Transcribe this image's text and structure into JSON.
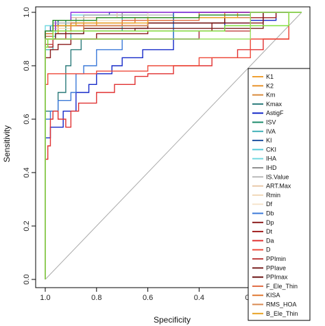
{
  "chart_data": {
    "type": "line",
    "xlabel": "Specificity",
    "ylabel": "Sensitivity",
    "x_reversed": true,
    "xlim": [
      1.0,
      0.0
    ],
    "ylim": [
      0.0,
      1.0
    ],
    "x_ticks": [
      1.0,
      0.8,
      0.6,
      0.4,
      0.2,
      0.0
    ],
    "x_tick_labels": [
      "1.0",
      "0.8",
      "0.6",
      "0.4",
      "0.2",
      "0.0"
    ],
    "y_ticks": [
      0.0,
      0.2,
      0.4,
      0.6,
      0.8,
      1.0
    ],
    "y_tick_labels": [
      "0.0",
      "0.2",
      "0.4",
      "0.6",
      "0.8",
      "1.0"
    ],
    "diagonal": {
      "x": [
        1.0,
        0.0
      ],
      "y": [
        0.0,
        1.0
      ],
      "color": "#aaaaaa"
    },
    "legend_position": "bottom-right",
    "series": [
      {
        "name": "K1",
        "color": "#f0a030",
        "x": [
          1.0,
          1.0,
          0.97,
          0.9,
          0.8,
          0.5,
          0.2,
          0.0
        ],
        "y": [
          0.0,
          0.9,
          0.93,
          0.93,
          0.97,
          0.97,
          1.0,
          1.0
        ]
      },
      {
        "name": "K2",
        "color": "#e8932a",
        "x": [
          1.0,
          1.0,
          0.95,
          0.8,
          0.5,
          0.0
        ],
        "y": [
          0.0,
          0.88,
          0.92,
          0.95,
          0.97,
          1.0
        ]
      },
      {
        "name": "Km",
        "color": "#d88a3a",
        "x": [
          1.0,
          1.0,
          0.96,
          0.85,
          0.6,
          0.0
        ],
        "y": [
          0.0,
          0.9,
          0.93,
          0.95,
          0.98,
          1.0
        ]
      },
      {
        "name": "Kmax",
        "color": "#2a7a7a",
        "x": [
          1.0,
          1.0,
          0.95,
          0.92,
          0.9,
          0.86,
          0.5,
          0.0
        ],
        "y": [
          0.0,
          0.57,
          0.63,
          0.7,
          0.8,
          0.86,
          0.9,
          1.0
        ]
      },
      {
        "name": "AstigF",
        "color": "#1428c8",
        "x": [
          1.0,
          1.0,
          0.98,
          0.93,
          0.88,
          0.83,
          0.8,
          0.74,
          0.7,
          0.62,
          0.5,
          0.4,
          0.3,
          0.2,
          0.1,
          0.0
        ],
        "y": [
          0.0,
          0.5,
          0.53,
          0.57,
          0.63,
          0.7,
          0.73,
          0.77,
          0.8,
          0.83,
          0.86,
          0.9,
          0.93,
          0.96,
          0.97,
          1.0
        ]
      },
      {
        "name": "ISV",
        "color": "#1a8a6a",
        "x": [
          1.0,
          1.0,
          0.97,
          0.92,
          0.85,
          0.5,
          0.0
        ],
        "y": [
          0.0,
          0.86,
          0.9,
          0.93,
          0.97,
          0.98,
          1.0
        ]
      },
      {
        "name": "IVA",
        "color": "#40b0b8",
        "x": [
          1.0,
          1.0,
          0.97,
          0.9,
          0.7,
          0.0
        ],
        "y": [
          0.0,
          0.83,
          0.86,
          0.9,
          0.93,
          1.0
        ]
      },
      {
        "name": "KI",
        "color": "#2050a0",
        "x": [
          1.0,
          1.0,
          0.98,
          0.95,
          0.9,
          0.85,
          0.75,
          0.6,
          0.4,
          0.2,
          0.0
        ],
        "y": [
          0.0,
          0.9,
          0.93,
          0.95,
          0.97,
          0.98,
          0.99,
          1.0,
          1.0,
          1.0,
          1.0
        ]
      },
      {
        "name": "CKI",
        "color": "#50c8d8",
        "x": [
          1.0,
          1.0,
          0.96,
          0.88,
          0.6,
          0.0
        ],
        "y": [
          0.0,
          0.88,
          0.91,
          0.95,
          0.97,
          1.0
        ]
      },
      {
        "name": "IHA",
        "color": "#70d8e0",
        "x": [
          1.0,
          1.0,
          0.97,
          0.9,
          0.6,
          0.0
        ],
        "y": [
          0.0,
          0.93,
          0.95,
          0.97,
          0.99,
          1.0
        ]
      },
      {
        "name": "IHD",
        "color": "#909090",
        "x": [
          1.0,
          1.0,
          0.96,
          0.88,
          0.7,
          0.4,
          0.0
        ],
        "y": [
          0.0,
          0.9,
          0.93,
          0.96,
          0.98,
          1.0,
          1.0
        ]
      },
      {
        "name": "IS.Value",
        "color": "#b8b8b8",
        "x": [
          1.0,
          1.0,
          0.97,
          0.85,
          0.5,
          0.0
        ],
        "y": [
          0.0,
          0.9,
          0.93,
          0.96,
          0.99,
          1.0
        ]
      },
      {
        "name": "ART.Max",
        "color": "#e8c8a8",
        "x": [
          1.0,
          1.0,
          0.96,
          0.9,
          0.72,
          0.5,
          0.0
        ],
        "y": [
          0.0,
          0.9,
          0.93,
          0.97,
          0.98,
          1.0,
          1.0
        ]
      },
      {
        "name": "Rmin",
        "color": "#f0d8b8",
        "x": [
          1.0,
          1.0,
          0.97,
          0.9,
          0.6,
          0.0
        ],
        "y": [
          0.0,
          0.87,
          0.9,
          0.94,
          0.97,
          1.0
        ]
      },
      {
        "name": "Df",
        "color": "#f6e4cc",
        "x": [
          1.0,
          1.0,
          0.97,
          0.9,
          0.6,
          0.0
        ],
        "y": [
          0.0,
          0.85,
          0.88,
          0.92,
          0.97,
          1.0
        ]
      },
      {
        "name": "Db",
        "color": "#3a78d8",
        "x": [
          1.0,
          1.0,
          0.98,
          0.95,
          0.9,
          0.88,
          0.85,
          0.8,
          0.7,
          0.5,
          0.0
        ],
        "y": [
          0.0,
          0.57,
          0.6,
          0.63,
          0.67,
          0.7,
          0.77,
          0.8,
          0.86,
          0.9,
          1.0
        ]
      },
      {
        "name": "Dp",
        "color": "#8a1a1a",
        "x": [
          1.0,
          1.0,
          0.98,
          0.95,
          0.9,
          0.8,
          0.6,
          0.35,
          0.15,
          0.0
        ],
        "y": [
          0.0,
          0.8,
          0.83,
          0.86,
          0.88,
          0.9,
          0.92,
          0.93,
          0.96,
          1.0
        ]
      },
      {
        "name": "Dt",
        "color": "#a01e1e",
        "x": [
          1.0,
          1.0,
          0.97,
          0.92,
          0.85,
          0.6,
          0.3,
          0.1,
          0.0
        ],
        "y": [
          0.0,
          0.83,
          0.87,
          0.9,
          0.93,
          0.95,
          0.96,
          0.98,
          1.0
        ]
      },
      {
        "name": "Da",
        "color": "#e03030",
        "x": [
          1.0,
          1.0,
          0.99,
          0.98,
          0.97,
          0.95,
          0.92,
          0.9,
          0.87,
          0.8,
          0.73,
          0.65,
          0.6,
          0.5,
          0.35,
          0.25,
          0.15,
          0.05,
          0.0
        ],
        "y": [
          0.0,
          0.4,
          0.45,
          0.5,
          0.6,
          0.63,
          0.6,
          0.57,
          0.63,
          0.66,
          0.7,
          0.73,
          0.76,
          0.77,
          0.8,
          0.83,
          0.86,
          0.9,
          1.0
        ]
      },
      {
        "name": "D",
        "color": "#ee4a3a",
        "x": [
          1.0,
          1.0,
          0.99,
          0.95,
          0.8,
          0.6,
          0.4,
          0.2,
          0.05,
          0.0
        ],
        "y": [
          0.0,
          0.6,
          0.73,
          0.77,
          0.77,
          0.78,
          0.8,
          0.83,
          0.9,
          1.0
        ]
      },
      {
        "name": "PPImin",
        "color": "#c04040",
        "x": [
          1.0,
          1.0,
          0.97,
          0.9,
          0.8,
          0.6,
          0.4,
          0.2,
          0.0
        ],
        "y": [
          0.0,
          0.86,
          0.88,
          0.9,
          0.9,
          0.9,
          0.9,
          0.93,
          1.0
        ]
      },
      {
        "name": "PPIave",
        "color": "#7a2020",
        "x": [
          1.0,
          1.0,
          0.97,
          0.88,
          0.65,
          0.4,
          0.15,
          0.0
        ],
        "y": [
          0.0,
          0.9,
          0.92,
          0.93,
          0.93,
          0.94,
          0.94,
          1.0
        ]
      },
      {
        "name": "PPImax",
        "color": "#6a1010",
        "x": [
          1.0,
          1.0,
          0.96,
          0.85,
          0.6,
          0.3,
          0.0
        ],
        "y": [
          0.0,
          0.88,
          0.9,
          0.92,
          0.94,
          0.96,
          1.0
        ]
      },
      {
        "name": "F_Ele_Thin",
        "color": "#e06a40",
        "x": [
          1.0,
          1.0,
          0.97,
          0.9,
          0.7,
          0.4,
          0.0
        ],
        "y": [
          0.0,
          0.88,
          0.91,
          0.93,
          0.95,
          0.97,
          1.0
        ]
      },
      {
        "name": "KISA",
        "color": "#e07830",
        "x": [
          1.0,
          1.0,
          0.97,
          0.9,
          0.65,
          0.3,
          0.0
        ],
        "y": [
          0.0,
          0.9,
          0.92,
          0.95,
          0.96,
          0.98,
          1.0
        ]
      },
      {
        "name": "RMS_HOA",
        "color": "#d88850",
        "x": [
          1.0,
          1.0,
          0.97,
          0.85,
          0.6,
          0.2,
          0.0
        ],
        "y": [
          0.0,
          0.88,
          0.9,
          0.93,
          0.95,
          0.98,
          1.0
        ]
      },
      {
        "name": "B_Ele_Thin",
        "color": "#e8a020",
        "x": [
          1.0,
          1.0,
          0.97,
          0.88,
          0.6,
          0.25,
          0.0
        ],
        "y": [
          0.0,
          0.9,
          0.93,
          0.95,
          0.96,
          0.98,
          1.0
        ]
      },
      {
        "name": "",
        "color": "#8a2be2",
        "x": [
          1.0,
          1.0,
          0.96,
          0.9,
          0.85,
          0.7,
          0.5,
          0.2,
          0.0
        ],
        "y": [
          0.0,
          0.9,
          0.93,
          0.97,
          1.0,
          1.0,
          1.0,
          1.0,
          1.0
        ]
      },
      {
        "name": "",
        "color": "#228b22",
        "x": [
          1.0,
          1.0,
          0.97,
          0.9,
          0.8,
          0.6,
          0.4,
          0.2,
          0.0
        ],
        "y": [
          0.0,
          0.9,
          0.93,
          0.97,
          0.97,
          0.98,
          0.98,
          0.99,
          1.0
        ]
      },
      {
        "name": "",
        "color": "#7fe03a",
        "x": [
          1.0,
          1.0,
          0.99,
          0.97,
          0.93,
          0.85,
          0.6,
          0.3,
          0.05,
          0.0
        ],
        "y": [
          0.0,
          0.83,
          0.87,
          0.9,
          0.93,
          0.93,
          0.93,
          0.93,
          0.95,
          1.0
        ]
      },
      {
        "name": "",
        "color": "#9ae060",
        "x": [
          1.0,
          1.0,
          0.98,
          0.92,
          0.8,
          0.5,
          0.2,
          0.0
        ],
        "y": [
          0.0,
          0.86,
          0.9,
          0.9,
          0.9,
          0.9,
          0.9,
          1.0
        ]
      }
    ]
  }
}
